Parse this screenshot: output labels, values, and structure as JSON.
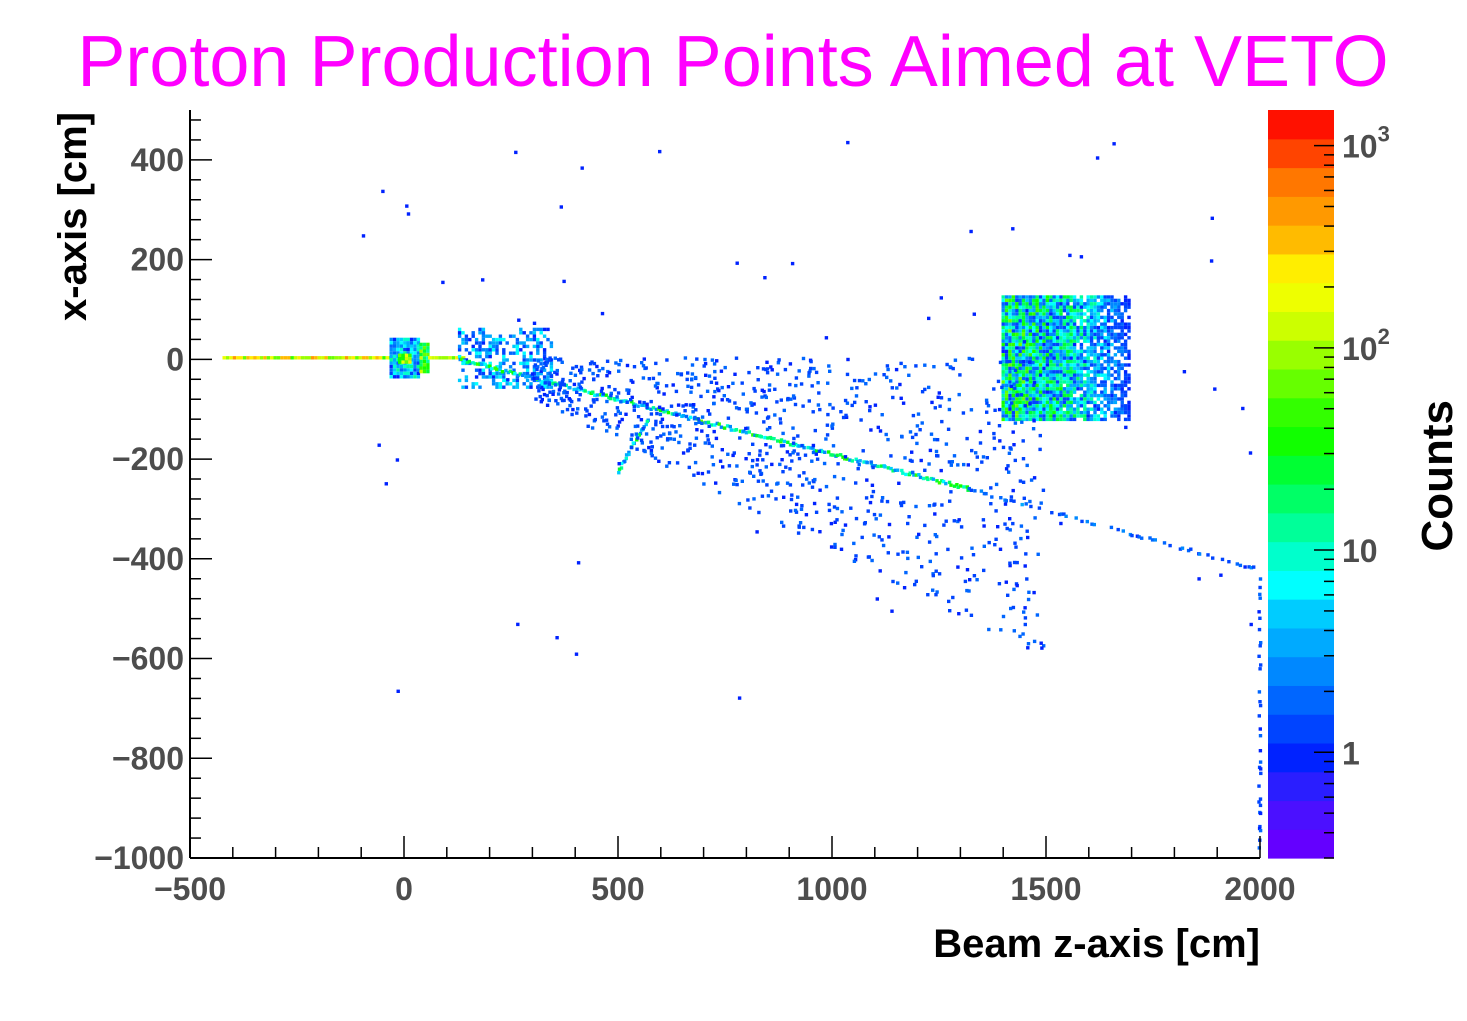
{
  "chart_data": {
    "type": "heatmap",
    "title": "Proton Production Points Aimed at VETO",
    "xlabel": "Beam z-axis [cm]",
    "ylabel": "x-axis [cm]",
    "zlabel": "Counts",
    "xlim": [
      -500,
      2000
    ],
    "ylim": [
      -1000,
      500
    ],
    "zlim": [
      0.3,
      1500
    ],
    "z_log_scale": true,
    "x_ticks": [
      -500,
      0,
      500,
      1000,
      1500,
      2000
    ],
    "x_tick_labels": [
      "−500",
      "0",
      "500",
      "1000",
      "1500",
      "2000"
    ],
    "y_ticks": [
      -1000,
      -800,
      -600,
      -400,
      -200,
      0,
      200,
      400
    ],
    "y_tick_labels": [
      "−1000",
      "−800",
      "−600",
      "−400",
      "−200",
      "0",
      "200",
      "400"
    ],
    "z_ticks": [
      {
        "value": 1000,
        "base": "10",
        "exp": "3"
      },
      {
        "value": 100,
        "base": "10",
        "exp": "2"
      },
      {
        "value": 10,
        "base": "10",
        "exp": ""
      },
      {
        "value": 1,
        "base": "1",
        "exp": ""
      }
    ],
    "palette": [
      "#6400ff",
      "#4b10ff",
      "#2a1eff",
      "#0022ff",
      "#0044ff",
      "#0066ff",
      "#0088ff",
      "#00aaff",
      "#00ccff",
      "#00ffff",
      "#00ffcc",
      "#00ff99",
      "#00ff66",
      "#00ff33",
      "#11ff00",
      "#33ff00",
      "#66ff00",
      "#99ff00",
      "#ccff00",
      "#eeff00",
      "#ffee00",
      "#ffbb00",
      "#ff9900",
      "#ff7700",
      "#ff4400",
      "#ff1100"
    ],
    "regions": [
      {
        "name": "beamline",
        "x": [
          -420,
          -20
        ],
        "y": [
          -3,
          3
        ],
        "counts": [
          40,
          500
        ]
      },
      {
        "name": "target",
        "x": [
          -30,
          40
        ],
        "y": [
          -40,
          40
        ],
        "counts": [
          1,
          15
        ]
      },
      {
        "name": "target-core",
        "x": [
          -10,
          20
        ],
        "y": [
          -8,
          8
        ],
        "counts": [
          30,
          300
        ]
      },
      {
        "name": "absorber",
        "x": [
          40,
          60
        ],
        "y": [
          -30,
          30
        ],
        "counts": [
          10,
          120
        ]
      },
      {
        "name": "beamline-2",
        "x": [
          60,
          140
        ],
        "y": [
          -3,
          3
        ],
        "counts": [
          40,
          300
        ]
      },
      {
        "name": "decay-region",
        "x": [
          130,
          350
        ],
        "y": [
          -60,
          60
        ],
        "counts": [
          1,
          8
        ]
      },
      {
        "name": "veto-detector",
        "x": [
          1400,
          1700
        ],
        "y": [
          -125,
          125
        ],
        "counts": [
          1,
          80
        ]
      }
    ],
    "tracks": [
      {
        "from": [
          130,
          0
        ],
        "to": [
          1320,
          -260
        ],
        "counts": [
          2,
          60
        ]
      },
      {
        "from": [
          1320,
          -260
        ],
        "to": [
          1990,
          -420
        ],
        "counts": [
          1,
          3
        ]
      },
      {
        "from": [
          2000,
          -420
        ],
        "to": [
          2000,
          -1000
        ],
        "counts": [
          1,
          2
        ]
      },
      {
        "from": [
          570,
          -120
        ],
        "to": [
          500,
          -225
        ],
        "counts": [
          2,
          30
        ]
      }
    ],
    "scatter": {
      "x": [
        -100,
        2000
      ],
      "y": [
        -700,
        450
      ],
      "counts": [
        1,
        2
      ]
    }
  }
}
